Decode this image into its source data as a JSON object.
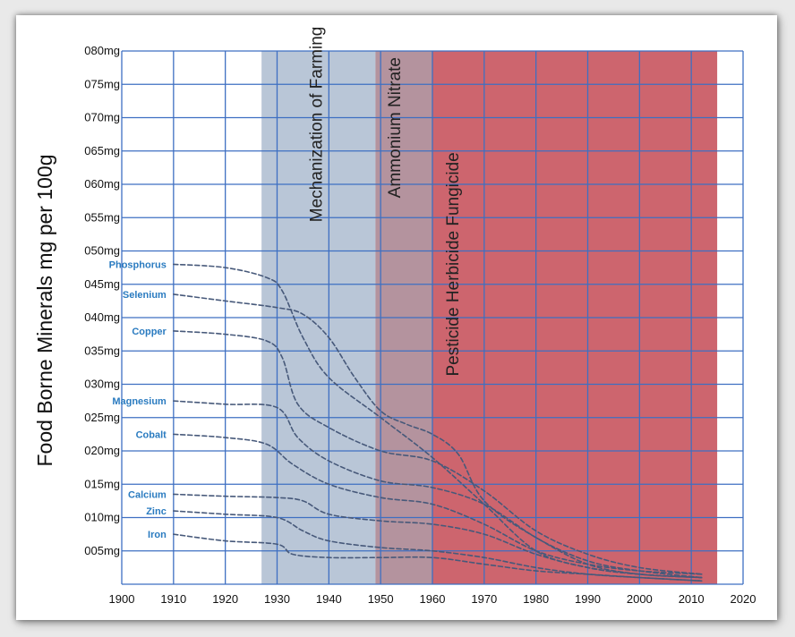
{
  "chart_data": {
    "type": "line",
    "title": "",
    "xlabel": "",
    "ylabel": "Food Borne Minerals mg per 100g",
    "xlim": [
      1900,
      2020
    ],
    "ylim": [
      0,
      80
    ],
    "grid": true,
    "x_ticks": [
      {
        "value": 1900,
        "label": "1900"
      },
      {
        "value": 1910,
        "label": "1910"
      },
      {
        "value": 1920,
        "label": "1920"
      },
      {
        "value": 1930,
        "label": "1930"
      },
      {
        "value": 1940,
        "label": "1940"
      },
      {
        "value": 1950,
        "label": "1950"
      },
      {
        "value": 1960,
        "label": "1960"
      },
      {
        "value": 1970,
        "label": "1970"
      },
      {
        "value": 1980,
        "label": "1980"
      },
      {
        "value": 1990,
        "label": "1990"
      },
      {
        "value": 2000,
        "label": "2000"
      },
      {
        "value": 2010,
        "label": "2010"
      },
      {
        "value": 2020,
        "label": "2020"
      }
    ],
    "y_ticks": [
      {
        "value": 5,
        "label": "005mg"
      },
      {
        "value": 10,
        "label": "010mg"
      },
      {
        "value": 15,
        "label": "015mg"
      },
      {
        "value": 20,
        "label": "020mg"
      },
      {
        "value": 25,
        "label": "025mg"
      },
      {
        "value": 30,
        "label": "030mg"
      },
      {
        "value": 35,
        "label": "035mg"
      },
      {
        "value": 40,
        "label": "040mg"
      },
      {
        "value": 45,
        "label": "045mg"
      },
      {
        "value": 50,
        "label": "050mg"
      },
      {
        "value": 55,
        "label": "055mg"
      },
      {
        "value": 60,
        "label": "060mg"
      },
      {
        "value": 65,
        "label": "065mg"
      },
      {
        "value": 70,
        "label": "070mg"
      },
      {
        "value": 75,
        "label": "075mg"
      },
      {
        "value": 80,
        "label": "080mg"
      }
    ],
    "bands": [
      {
        "label": "Mechanization of Farming",
        "x_start": 1927,
        "x_end": 1949,
        "color": "#7f98b6",
        "opacity": 0.55
      },
      {
        "label": "Ammonium Nitrate",
        "x_start": 1949,
        "x_end": 1960,
        "color": "#9b6f7e",
        "opacity": 0.75
      },
      {
        "label": "Pesticide   Herbicide   Fungicide",
        "x_start": 1960,
        "x_end": 2015,
        "color": "#c2434e",
        "opacity": 0.82
      }
    ],
    "series": [
      {
        "name": "Phosphorus",
        "x": [
          1910,
          1920,
          1928,
          1931,
          1935,
          1940,
          1950,
          1960,
          1970,
          1980,
          1990,
          2000,
          2012
        ],
        "y": [
          48,
          47.5,
          46,
          44,
          37,
          31,
          25,
          19,
          12,
          5,
          2.5,
          1.5,
          1
        ]
      },
      {
        "name": "Selenium",
        "x": [
          1910,
          1920,
          1930,
          1935,
          1940,
          1945,
          1950,
          1955,
          1960,
          1965,
          1970,
          1980,
          1990,
          2000,
          2012
        ],
        "y": [
          43.5,
          42.5,
          41.5,
          40.5,
          37,
          31,
          26,
          24,
          22.5,
          19.5,
          12.5,
          7,
          3.5,
          2,
          1
        ]
      },
      {
        "name": "Copper",
        "x": [
          1910,
          1920,
          1928,
          1931,
          1934,
          1940,
          1950,
          1960,
          1970,
          1980,
          1990,
          2000,
          2012
        ],
        "y": [
          38,
          37.5,
          36.5,
          34,
          27,
          23.5,
          20,
          18.5,
          14,
          8,
          4.5,
          2.5,
          1.5
        ]
      },
      {
        "name": "Magnesium",
        "x": [
          1910,
          1920,
          1930,
          1934,
          1940,
          1950,
          1960,
          1970,
          1980,
          1990,
          2000,
          2012
        ],
        "y": [
          27.5,
          27,
          26.5,
          22,
          18.5,
          15.5,
          14.5,
          12,
          7,
          3,
          1.5,
          1
        ]
      },
      {
        "name": "Cobalt",
        "x": [
          1910,
          1920,
          1928,
          1933,
          1940,
          1950,
          1960,
          1970,
          1980,
          1990,
          2000,
          2012
        ],
        "y": [
          22.5,
          22,
          21,
          18,
          15,
          13,
          12,
          9,
          5,
          3,
          2,
          1.5
        ]
      },
      {
        "name": "Calcium",
        "x": [
          1910,
          1920,
          1930,
          1935,
          1940,
          1950,
          1960,
          1970,
          1980,
          1990,
          2000,
          2012
        ],
        "y": [
          13.5,
          13.2,
          13,
          12.5,
          10.5,
          9.5,
          9,
          7.5,
          4.5,
          2.5,
          1.5,
          1
        ]
      },
      {
        "name": "Zinc",
        "x": [
          1910,
          1920,
          1930,
          1935,
          1940,
          1950,
          1960,
          1970,
          1980,
          1990,
          2000,
          2012
        ],
        "y": [
          11,
          10.5,
          10,
          8,
          6.5,
          5.5,
          5,
          4,
          2.5,
          1.5,
          1,
          0.5
        ]
      },
      {
        "name": "Iron",
        "x": [
          1910,
          1920,
          1930,
          1933,
          1940,
          1950,
          1960,
          1970,
          1980,
          1990,
          2000,
          2012
        ],
        "y": [
          7.5,
          6.5,
          6,
          4.5,
          4,
          4,
          4,
          3,
          2,
          1.5,
          1,
          0.5
        ]
      }
    ],
    "colors": {
      "grid": "#3e6fc2",
      "series_line": "#47597a",
      "series_label": "#2a7bc0"
    }
  }
}
